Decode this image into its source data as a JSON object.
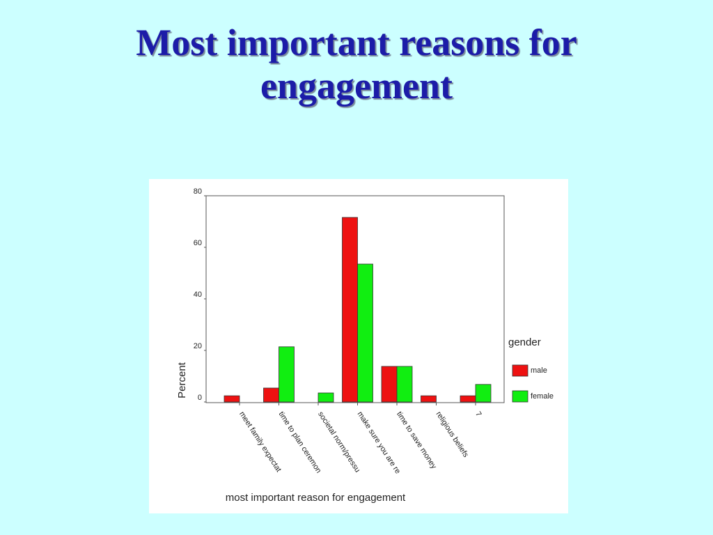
{
  "chart_data": {
    "type": "bar",
    "title": "Most important reasons for engagement",
    "x_label": "most important reason for engagement",
    "y_label": "Percent",
    "legend_title": "gender",
    "legend_position": "right",
    "categories": [
      "meet family expectat",
      "time to plan ceremon",
      "societal norm/pressu",
      "make sure you are re",
      "time to save money",
      "religious beliefs",
      "7"
    ],
    "series": [
      {
        "name": "male",
        "color": "#ee1111",
        "values": [
          2.4,
          5.4,
          null,
          71.6,
          13.8,
          2.4,
          2.4
        ]
      },
      {
        "name": "female",
        "color": "#11ee11",
        "values": [
          null,
          21.4,
          3.5,
          53.5,
          13.8,
          null,
          6.8
        ]
      }
    ],
    "ylim": [
      0,
      80
    ],
    "yticks": [
      0,
      20,
      40,
      60,
      80
    ]
  }
}
